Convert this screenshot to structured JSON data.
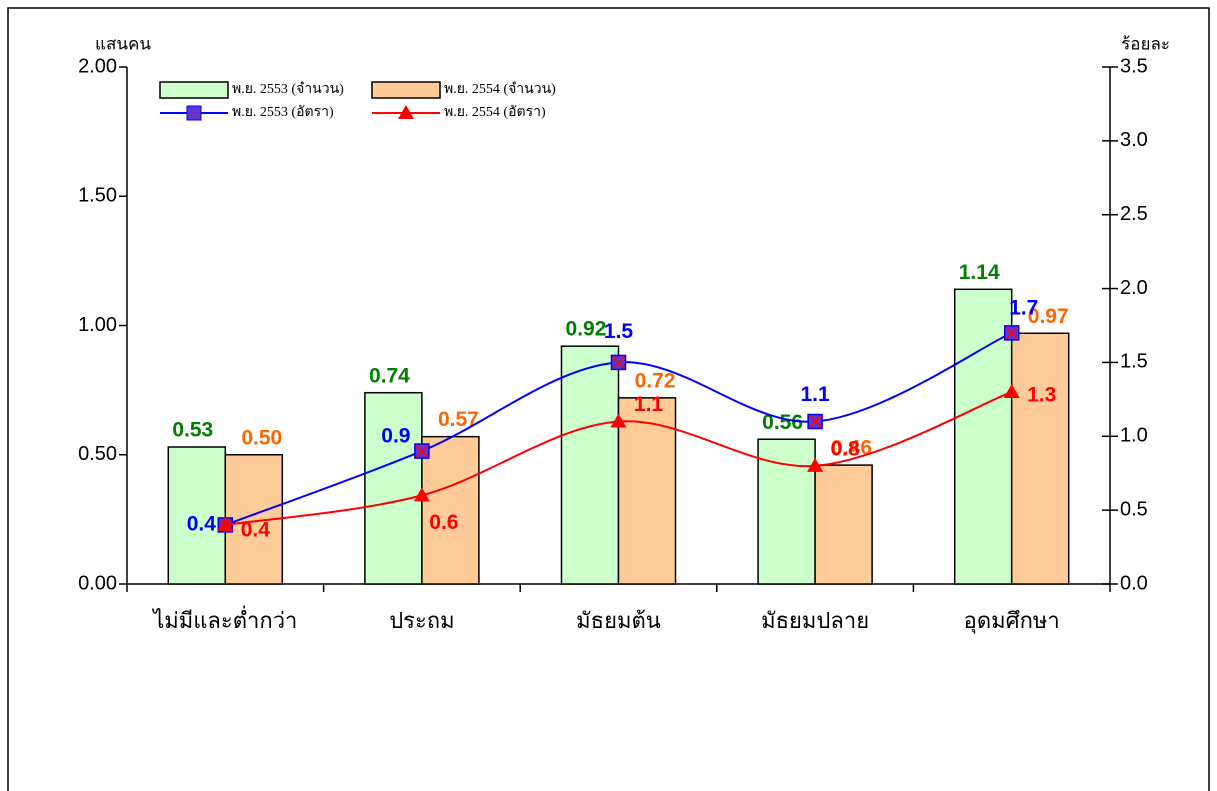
{
  "chart_data": {
    "type": "bar",
    "y_label": "แสนคน",
    "y2_label": "ร้อยละ",
    "categories": [
      "ไม่มีและต่ำกว่า",
      "ประถม",
      "มัธยมต้น",
      "มัธยมปลาย",
      "อุดมศึกษา"
    ],
    "series": [
      {
        "name": "พ.ย. 2553 (จำนวน)",
        "type": "bar",
        "color": "#ccffcc",
        "label_color": "#008000",
        "values": [
          0.53,
          0.74,
          0.92,
          0.56,
          1.14
        ]
      },
      {
        "name": "พ.ย. 2554 (จำนวน)",
        "type": "bar",
        "color": "#ffcc99",
        "label_color": "#ff6600",
        "values": [
          0.5,
          0.57,
          0.72,
          0.46,
          0.97
        ],
        "value_labels": [
          "0.50",
          "0.57",
          "0.72",
          "0.46",
          "0.97"
        ]
      },
      {
        "name": "พ.ย. 2553 (อัตรา)",
        "type": "line",
        "axis": "y2",
        "color": "#0000ff",
        "marker": "square",
        "marker_color": "#6633cc",
        "values": [
          0.4,
          0.9,
          1.5,
          1.1,
          1.7
        ]
      },
      {
        "name": "พ.ย. 2554 (อัตรา)",
        "type": "line",
        "axis": "y2",
        "color": "#ff0000",
        "marker": "triangle",
        "marker_color": "#ff0000",
        "values": [
          0.4,
          0.6,
          1.1,
          0.8,
          1.3
        ]
      }
    ],
    "ylim": [
      0,
      2
    ],
    "yticks": [
      {
        "value": 0,
        "label": "0.00"
      },
      {
        "value": 0.5,
        "label": "0.50"
      },
      {
        "value": 1,
        "label": "1.00"
      },
      {
        "value": 1.5,
        "label": "1.50"
      },
      {
        "value": 2,
        "label": "2.00"
      }
    ],
    "y2lim": [
      0,
      3.5
    ],
    "y2ticks": [
      {
        "value": 0,
        "label": "0.0"
      },
      0.5,
      {
        "value": 1,
        "label": "1.0"
      },
      1.5,
      {
        "value": 2,
        "label": "2.0"
      },
      2.5,
      {
        "value": 3,
        "label": "3.0"
      },
      {
        "value": 3.5,
        "label": "3.5"
      }
    ],
    "smooth": true,
    "grid": false,
    "legend": "top-left"
  }
}
